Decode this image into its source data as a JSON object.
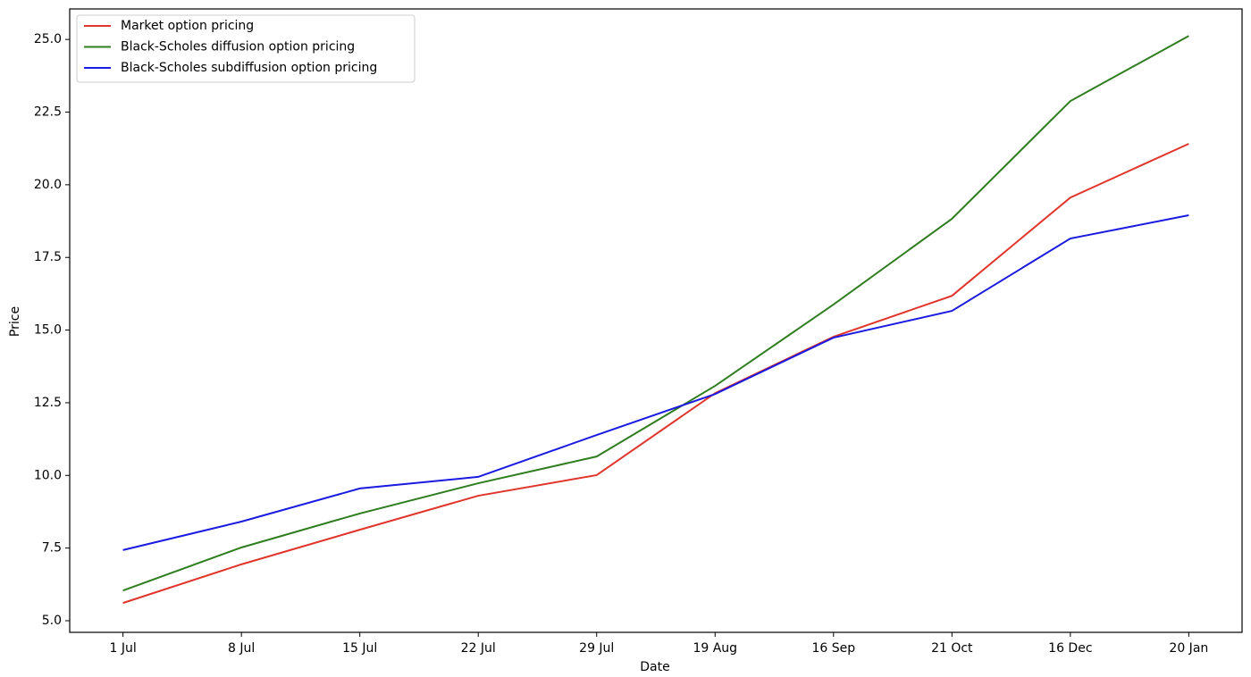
{
  "chart_data": {
    "type": "line",
    "x_label": "Date",
    "y_label": "Price",
    "categories": [
      "1 Jul",
      "8 Jul",
      "15 Jul",
      "22 Jul",
      "29 Jul",
      "19 Aug",
      "16 Sep",
      "21 Oct",
      "16 Dec",
      "20 Jan"
    ],
    "series": [
      {
        "name": "Market option pricing",
        "color": "#e0352b",
        "values": [
          5.61,
          6.94,
          8.13,
          9.3,
          10.01,
          12.83,
          14.77,
          16.18,
          19.56,
          21.41
        ]
      },
      {
        "name": "Black-Scholes diffusion option pricing",
        "color": "#2e7d1e",
        "values": [
          6.04,
          7.52,
          8.69,
          9.73,
          10.65,
          13.08,
          15.88,
          18.83,
          22.88,
          25.12
        ]
      },
      {
        "name": "Black-Scholes subdiffusion option pricing",
        "color": "#1a1ae0",
        "values": [
          7.43,
          8.41,
          9.55,
          9.95,
          11.39,
          12.8,
          14.74,
          15.66,
          18.15,
          18.95
        ]
      }
    ],
    "ylim": [
      4.6,
      26.05
    ],
    "yticks": [
      {
        "value": 5,
        "label": "5.0"
      },
      {
        "value": 7.5,
        "label": "7.5"
      },
      {
        "value": 10,
        "label": "10.0"
      },
      {
        "value": 12.5,
        "label": "12.5"
      },
      {
        "value": 15,
        "label": "15.0"
      },
      {
        "value": 17.5,
        "label": "17.5"
      },
      {
        "value": 20,
        "label": "20.0"
      },
      {
        "value": 22.5,
        "label": "22.5"
      },
      {
        "value": 25,
        "label": "25.0"
      }
    ],
    "grid": false,
    "legend": "upper-left"
  }
}
